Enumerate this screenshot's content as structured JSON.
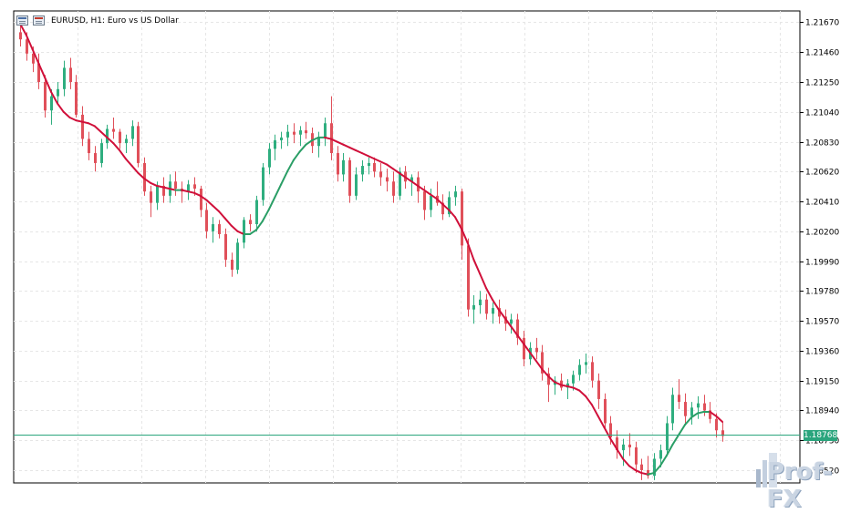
{
  "window": {
    "title": "EURUSD, H1:  Euro vs US Dollar"
  },
  "icons": {
    "chart_window_icon": "window-icon",
    "trade_icon": "trade-panel-icon"
  },
  "price_axis": {
    "labels": [
      "1.21670",
      "1.21460",
      "1.21250",
      "1.21040",
      "1.20830",
      "1.20620",
      "1.20410",
      "1.20200",
      "1.19990",
      "1.19780",
      "1.19570",
      "1.19360",
      "1.19150",
      "1.18940",
      "1.18730",
      "1.18520"
    ]
  },
  "current_price": {
    "label": "1.18768",
    "value": 1.18768,
    "color": "#2aa57d"
  },
  "watermark": {
    "text": "Prof-FX"
  },
  "colors": {
    "bull_candle": "#2fae7f",
    "bear_candle": "#e0505a",
    "ma_down": "#d0103a",
    "ma_up": "#2a9e66",
    "grid": "#e6e6e6"
  },
  "chart_data": {
    "type": "candlestick",
    "symbol": "EURUSD",
    "timeframe": "H1",
    "ylim": [
      1.1843,
      1.2175
    ],
    "grid": true,
    "candles": [
      [
        1.216,
        1.2168,
        1.215,
        1.2155
      ],
      [
        1.2155,
        1.216,
        1.214,
        1.2145
      ],
      [
        1.2145,
        1.215,
        1.2132,
        1.2138
      ],
      [
        1.2138,
        1.2145,
        1.212,
        1.2125
      ],
      [
        1.2125,
        1.213,
        1.21,
        1.2105
      ],
      [
        1.2105,
        1.212,
        1.2095,
        1.2115
      ],
      [
        1.2115,
        1.2125,
        1.211,
        1.212
      ],
      [
        1.212,
        1.214,
        1.2115,
        1.2135
      ],
      [
        1.2135,
        1.2142,
        1.212,
        1.2125
      ],
      [
        1.2125,
        1.213,
        1.21,
        1.2102
      ],
      [
        1.2102,
        1.2108,
        1.208,
        1.2085
      ],
      [
        1.2085,
        1.209,
        1.207,
        1.2075
      ],
      [
        1.2075,
        1.208,
        1.2062,
        1.2068
      ],
      [
        1.2068,
        1.2085,
        1.2065,
        1.2082
      ],
      [
        1.2082,
        1.2095,
        1.2078,
        1.2092
      ],
      [
        1.2092,
        1.21,
        1.2085,
        1.209
      ],
      [
        1.209,
        1.2092,
        1.2078,
        1.2082
      ],
      [
        1.2082,
        1.2088,
        1.2075,
        1.2085
      ],
      [
        1.2085,
        1.2098,
        1.208,
        1.2094
      ],
      [
        1.2094,
        1.2097,
        1.2065,
        1.2068
      ],
      [
        1.2068,
        1.2072,
        1.2045,
        1.2048
      ],
      [
        1.2048,
        1.2052,
        1.203,
        1.204
      ],
      [
        1.204,
        1.2055,
        1.2035,
        1.2052
      ],
      [
        1.2052,
        1.2058,
        1.204,
        1.2045
      ],
      [
        1.2045,
        1.206,
        1.204,
        1.2055
      ],
      [
        1.2055,
        1.2062,
        1.2045,
        1.205
      ],
      [
        1.205,
        1.2055,
        1.204,
        1.2048
      ],
      [
        1.2048,
        1.2056,
        1.2042,
        1.2053
      ],
      [
        1.2053,
        1.2058,
        1.2045,
        1.205
      ],
      [
        1.205,
        1.2052,
        1.203,
        1.2035
      ],
      [
        1.2035,
        1.204,
        1.2015,
        1.202
      ],
      [
        1.202,
        1.203,
        1.2012,
        1.2025
      ],
      [
        1.2025,
        1.2028,
        1.2015,
        1.2018
      ],
      [
        1.2018,
        1.2022,
        1.1995,
        1.2
      ],
      [
        1.2,
        1.2005,
        1.1988,
        1.1993
      ],
      [
        1.1993,
        1.2015,
        1.199,
        1.2012
      ],
      [
        1.2012,
        1.203,
        1.2008,
        1.2028
      ],
      [
        1.2028,
        1.2032,
        1.202,
        1.2025
      ],
      [
        1.2025,
        1.2045,
        1.202,
        1.2042
      ],
      [
        1.2042,
        1.2068,
        1.2038,
        1.2065
      ],
      [
        1.2065,
        1.2082,
        1.206,
        1.2078
      ],
      [
        1.2078,
        1.2088,
        1.207,
        1.2084
      ],
      [
        1.2084,
        1.209,
        1.2078,
        1.2086
      ],
      [
        1.2086,
        1.2095,
        1.208,
        1.209
      ],
      [
        1.209,
        1.2096,
        1.2082,
        1.2088
      ],
      [
        1.2088,
        1.2094,
        1.208,
        1.2091
      ],
      [
        1.2091,
        1.2097,
        1.2085,
        1.2089
      ],
      [
        1.2089,
        1.2093,
        1.2075,
        1.208
      ],
      [
        1.208,
        1.209,
        1.2072,
        1.2086
      ],
      [
        1.2086,
        1.21,
        1.208,
        1.2096
      ],
      [
        1.2096,
        1.2115,
        1.207,
        1.2075
      ],
      [
        1.2075,
        1.208,
        1.2055,
        1.206
      ],
      [
        1.206,
        1.2075,
        1.2055,
        1.207
      ],
      [
        1.207,
        1.2072,
        1.204,
        1.2045
      ],
      [
        1.2045,
        1.2065,
        1.2042,
        1.206
      ],
      [
        1.206,
        1.207,
        1.2055,
        1.2066
      ],
      [
        1.2066,
        1.2072,
        1.206,
        1.2068
      ],
      [
        1.2068,
        1.2072,
        1.2058,
        1.2062
      ],
      [
        1.2062,
        1.2068,
        1.2052,
        1.2058
      ],
      [
        1.2058,
        1.2064,
        1.2048,
        1.2055
      ],
      [
        1.2055,
        1.2062,
        1.204,
        1.2045
      ],
      [
        1.2045,
        1.2065,
        1.2042,
        1.2062
      ],
      [
        1.2062,
        1.2066,
        1.205,
        1.2055
      ],
      [
        1.2055,
        1.206,
        1.2045,
        1.2058
      ],
      [
        1.2058,
        1.2062,
        1.204,
        1.2048
      ],
      [
        1.2048,
        1.2052,
        1.2028,
        1.2035
      ],
      [
        1.2035,
        1.205,
        1.203,
        1.2045
      ],
      [
        1.2045,
        1.2055,
        1.2038,
        1.204
      ],
      [
        1.204,
        1.2046,
        1.2028,
        1.2032
      ],
      [
        1.2032,
        1.2048,
        1.203,
        1.2044
      ],
      [
        1.2044,
        1.2052,
        1.2038,
        1.2048
      ],
      [
        1.2048,
        1.205,
        1.2,
        1.201
      ],
      [
        1.201,
        1.2015,
        1.196,
        1.1965
      ],
      [
        1.1965,
        1.1975,
        1.1955,
        1.1968
      ],
      [
        1.1968,
        1.1978,
        1.1962,
        1.1972
      ],
      [
        1.1972,
        1.1976,
        1.1958,
        1.1962
      ],
      [
        1.1962,
        1.197,
        1.1955,
        1.1966
      ],
      [
        1.1966,
        1.1972,
        1.1955,
        1.196
      ],
      [
        1.196,
        1.1965,
        1.195,
        1.1955
      ],
      [
        1.1955,
        1.1962,
        1.1948,
        1.1958
      ],
      [
        1.1958,
        1.1962,
        1.194,
        1.1945
      ],
      [
        1.1945,
        1.195,
        1.1925,
        1.193
      ],
      [
        1.193,
        1.1942,
        1.1926,
        1.1938
      ],
      [
        1.1938,
        1.1945,
        1.193,
        1.1935
      ],
      [
        1.1935,
        1.194,
        1.1915,
        1.192
      ],
      [
        1.192,
        1.1924,
        1.19,
        1.1912
      ],
      [
        1.1912,
        1.1918,
        1.1905,
        1.1915
      ],
      [
        1.1915,
        1.192,
        1.1908,
        1.191
      ],
      [
        1.191,
        1.1916,
        1.1902,
        1.1913
      ],
      [
        1.1913,
        1.1922,
        1.1908,
        1.1919
      ],
      [
        1.1919,
        1.193,
        1.1915,
        1.1926
      ],
      [
        1.1926,
        1.1934,
        1.192,
        1.1928
      ],
      [
        1.1928,
        1.1932,
        1.191,
        1.1915
      ],
      [
        1.1915,
        1.192,
        1.1895,
        1.1902
      ],
      [
        1.1902,
        1.1906,
        1.188,
        1.1885
      ],
      [
        1.1885,
        1.189,
        1.187,
        1.1875
      ],
      [
        1.1875,
        1.188,
        1.186,
        1.1866
      ],
      [
        1.1866,
        1.1874,
        1.1855,
        1.187
      ],
      [
        1.187,
        1.1878,
        1.1862,
        1.1868
      ],
      [
        1.1868,
        1.1872,
        1.185,
        1.1856
      ],
      [
        1.1856,
        1.186,
        1.1845,
        1.1852
      ],
      [
        1.1852,
        1.1862,
        1.1846,
        1.1848
      ],
      [
        1.1848,
        1.1864,
        1.1845,
        1.186
      ],
      [
        1.186,
        1.187,
        1.1854,
        1.1866
      ],
      [
        1.1866,
        1.189,
        1.1862,
        1.1885
      ],
      [
        1.1885,
        1.191,
        1.188,
        1.1905
      ],
      [
        1.1905,
        1.1916,
        1.1895,
        1.19
      ],
      [
        1.19,
        1.1906,
        1.1885,
        1.189
      ],
      [
        1.189,
        1.19,
        1.1884,
        1.1896
      ],
      [
        1.1896,
        1.1904,
        1.1888,
        1.1899
      ],
      [
        1.1899,
        1.1905,
        1.189,
        1.1894
      ],
      [
        1.1894,
        1.19,
        1.1885,
        1.1888
      ],
      [
        1.1888,
        1.1892,
        1.1875,
        1.188
      ],
      [
        1.188,
        1.1886,
        1.1872,
        1.1876
      ]
    ],
    "moving_average": {
      "values": [
        1.2166,
        1.2158,
        1.2148,
        1.2138,
        1.2128,
        1.2118,
        1.211,
        1.2104,
        1.21,
        1.2098,
        1.2097,
        1.2096,
        1.2094,
        1.209,
        1.2086,
        1.2082,
        1.2077,
        1.2071,
        1.2066,
        1.2061,
        1.2057,
        1.2054,
        1.2052,
        1.2051,
        1.205,
        1.2049,
        1.2049,
        1.2048,
        1.2047,
        1.2045,
        1.2042,
        1.2038,
        1.2034,
        1.2029,
        1.2024,
        1.202,
        1.2018,
        1.2018,
        1.2021,
        1.2027,
        1.2035,
        1.2044,
        1.2053,
        1.2062,
        1.207,
        1.2076,
        1.2081,
        1.2084,
        1.2086,
        1.2086,
        1.2085,
        1.2083,
        1.2081,
        1.2079,
        1.2077,
        1.2075,
        1.2073,
        1.2071,
        1.2069,
        1.2067,
        1.2064,
        1.2061,
        1.2058,
        1.2055,
        1.2052,
        1.2049,
        1.2046,
        1.2043,
        1.2039,
        1.2035,
        1.203,
        1.2022,
        1.2012,
        1.2,
        1.199,
        1.198,
        1.1972,
        1.1965,
        1.1959,
        1.1953,
        1.1947,
        1.1941,
        1.1935,
        1.1929,
        1.1923,
        1.1918,
        1.1914,
        1.1912,
        1.1911,
        1.191,
        1.1908,
        1.1904,
        1.1898,
        1.189,
        1.1882,
        1.1874,
        1.1867,
        1.186,
        1.1855,
        1.1852,
        1.185,
        1.1849,
        1.185,
        1.1855,
        1.1862,
        1.187,
        1.1877,
        1.1884,
        1.1889,
        1.1892,
        1.1893,
        1.1893,
        1.189,
        1.1886
      ]
    }
  }
}
